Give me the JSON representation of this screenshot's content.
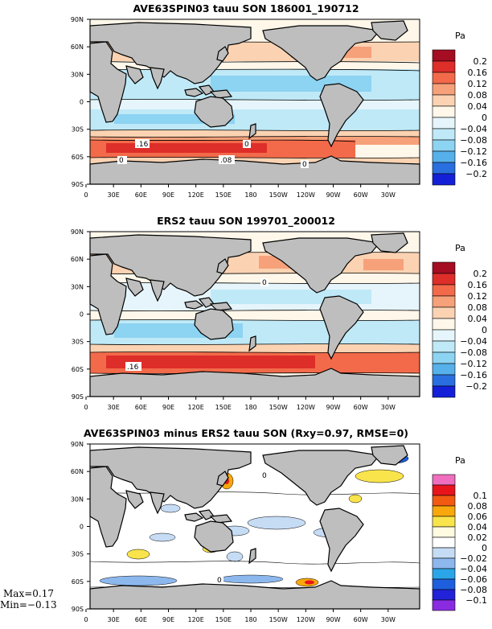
{
  "panels": [
    {
      "title": "AVE63SPIN03 tauu SON 186001_190712",
      "units": "Pa",
      "colorbar_labels": [
        "0.2",
        "0.16",
        "0.12",
        "0.08",
        "0.04",
        "0",
        "−0.04",
        "−0.08",
        "−0.12",
        "−0.16",
        "−0.2"
      ],
      "colorbar_colors": [
        "#a50d22",
        "#de2e2a",
        "#f26a4a",
        "#f6a17a",
        "#fbd3b3",
        "#fef7ea",
        "#e6f5fb",
        "#bfe9f7",
        "#8dd3f2",
        "#56b0ea",
        "#2a6fe0",
        "#1420d8"
      ],
      "contour_labels": [
        ".16",
        "0",
        ".08",
        "0",
        "0"
      ]
    },
    {
      "title": "ERS2 tauu SON 199701_200012",
      "units": "Pa",
      "colorbar_labels": [
        "0.2",
        "0.16",
        "0.12",
        "0.08",
        "0.04",
        "0",
        "−0.04",
        "−0.08",
        "−0.12",
        "−0.16",
        "−0.2"
      ],
      "colorbar_colors": [
        "#a50d22",
        "#de2e2a",
        "#f26a4a",
        "#f6a17a",
        "#fbd3b3",
        "#fef7ea",
        "#e6f5fb",
        "#bfe9f7",
        "#8dd3f2",
        "#56b0ea",
        "#2a6fe0",
        "#1420d8"
      ],
      "contour_labels": [
        "0",
        ".16"
      ]
    },
    {
      "title": "AVE63SPIN03 minus ERS2 tauu SON (Rxy=0.97, RMSE=0)",
      "units": "Pa",
      "colorbar_labels": [
        "0.1",
        "0.08",
        "0.06",
        "0.04",
        "0.02",
        "0",
        "−0.02",
        "−0.04",
        "−0.06",
        "−0.08",
        "−0.1"
      ],
      "colorbar_colors": [
        "#ef6fbe",
        "#e8141c",
        "#f25a12",
        "#f8a80c",
        "#fae44b",
        "#fffbe0",
        "#ffffff",
        "#c6dcf5",
        "#8db8ee",
        "#2aa6e8",
        "#1f5fdd",
        "#2222d8",
        "#8a2be2"
      ],
      "contour_labels": [
        "0",
        "0"
      ],
      "stats": {
        "max": "Max=0.17",
        "min": "Min=−0.13"
      }
    }
  ],
  "axes": {
    "lat_ticks": [
      "90N",
      "60N",
      "30N",
      "0",
      "30S",
      "60S",
      "90S"
    ],
    "lon_ticks": [
      "0",
      "30E",
      "60E",
      "90E",
      "120E",
      "150E",
      "180",
      "150W",
      "120W",
      "90W",
      "60W",
      "30W"
    ]
  },
  "colors": {
    "land": "#bebebe",
    "coastline": "#000000",
    "contour": "#000000"
  }
}
